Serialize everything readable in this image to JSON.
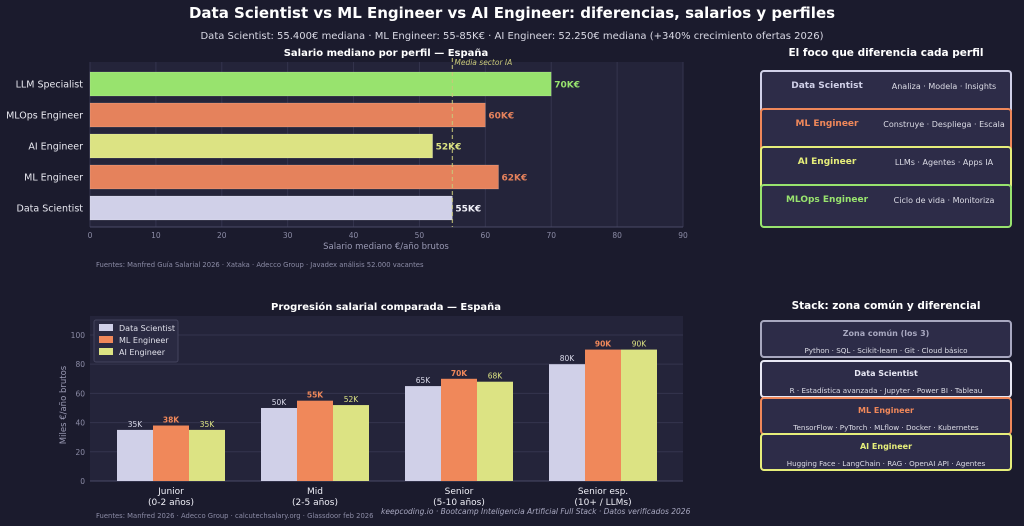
{
  "title": "Data Scientist vs ML Engineer vs AI Engineer: diferencias, salarios y perfiles",
  "subtitle": "Data Scientist: 55.400€ mediana · ML Engineer: 55-85K€ · AI Engineer: 52.250€ mediana (+340% crecimiento ofertas 2026)",
  "chart_data": [
    {
      "type": "bar",
      "orientation": "horizontal",
      "title": "Salario mediano por perfil — España",
      "xlabel": "Salario mediano €/año brutos",
      "ylabel": "",
      "xlim": [
        0,
        90
      ],
      "xticks": [
        "0",
        "10",
        "20",
        "30",
        "40",
        "50",
        "60",
        "70",
        "80",
        "90"
      ],
      "categories": [
        "LLM Specialist",
        "MLOps Engineer",
        "AI Engineer",
        "ML Engineer",
        "Data Scientist"
      ],
      "values": [
        70,
        60,
        52,
        62,
        55
      ],
      "data_labels": [
        "70K€",
        "60K€",
        "52K€",
        "62K€",
        "55K€"
      ],
      "colors": [
        "#98e36e",
        "#e5825c",
        "#dce383",
        "#e5825c",
        "#d0d0e8"
      ],
      "reference_line": {
        "value": 55,
        "label": "Media sector IA",
        "color": "#c8c87a"
      },
      "grid": "vertical",
      "source": "Fuentes: Manfred Guía Salarial 2026 · Xataka · Adecco Group · Javadex análisis 52.000 vacantes"
    },
    {
      "type": "bar",
      "title": "Progresión salarial comparada — España",
      "xlabel": "",
      "ylabel": "Miles €/año brutos",
      "ylim": [
        0,
        113
      ],
      "yticks": [
        "0",
        "20",
        "40",
        "60",
        "80",
        "100"
      ],
      "categories": [
        "Junior\n(0-2 años)",
        "Mid\n(2-5 años)",
        "Senior\n(5-10 años)",
        "Senior esp.\n(10+ / LLMs)"
      ],
      "series": [
        {
          "name": "Data Scientist",
          "values": [
            35,
            50,
            65,
            80
          ],
          "labels": [
            "35K",
            "50K",
            "65K",
            "80K"
          ],
          "color": "#d0d0e8"
        },
        {
          "name": "ML Engineer",
          "values": [
            38,
            55,
            70,
            90
          ],
          "labels": [
            "38K",
            "55K",
            "70K",
            "90K"
          ],
          "color": "#f0885a"
        },
        {
          "name": "AI Engineer",
          "values": [
            35,
            52,
            68,
            90
          ],
          "labels": [
            "35K",
            "52K",
            "68K",
            "90K"
          ],
          "color": "#dce383"
        }
      ],
      "legend": "top-left",
      "grid": "horizontal",
      "source": "Fuentes: Manfred 2026 · Adecco Group · calcutechsalary.org · Glassdoor feb 2026"
    }
  ],
  "focus": {
    "title": "El foco que diferencia cada perfil",
    "items": [
      {
        "name": "Data Scientist",
        "desc": "Analiza · Modela · Insights",
        "color": "#d0d0e8"
      },
      {
        "name": "ML Engineer",
        "desc": "Construye · Despliega · Escala",
        "color": "#f0885a"
      },
      {
        "name": "AI Engineer",
        "desc": "LLMs · Agentes · Apps IA",
        "color": "#e6ee7a"
      },
      {
        "name": "MLOps Engineer",
        "desc": "Ciclo de vida · Monitoriza",
        "color": "#98e36e"
      }
    ]
  },
  "stack": {
    "title": "Stack: zona común y diferencial",
    "items": [
      {
        "name": "Zona común (los 3)",
        "desc": "Python · SQL · Scikit-learn · Git · Cloud básico",
        "color": "#a8a8c0"
      },
      {
        "name": "Data Scientist",
        "desc": "R · Estadística avanzada · Jupyter · Power BI · Tableau",
        "color": "#e8e8f4"
      },
      {
        "name": "ML Engineer",
        "desc": "TensorFlow · PyTorch · MLflow · Docker · Kubernetes",
        "color": "#f0885a"
      },
      {
        "name": "AI Engineer",
        "desc": "Hugging Face · LangChain · RAG · OpenAI API · Agentes",
        "color": "#e6ee7a"
      }
    ]
  },
  "footer": "keepcoding.io  ·  Bootcamp Inteligencia Artificial Full Stack  ·  Datos verificados 2026"
}
